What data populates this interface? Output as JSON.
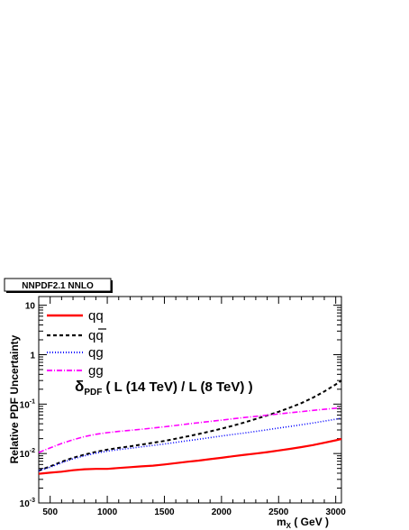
{
  "chart_data": {
    "type": "line",
    "title_box": "NNPDF2.1 NNLO",
    "xlabel_main": "m",
    "xlabel_sub": "X",
    "xlabel_unit": " ( GeV )",
    "ylabel": "Relative PDF Uncertainty",
    "xlim": [
      400,
      3050
    ],
    "ylim": [
      0.001,
      15
    ],
    "yscale": "log",
    "x_ticks": [
      500,
      1000,
      1500,
      2000,
      2500,
      3000
    ],
    "y_ticks": [
      {
        "value": 0.001,
        "base": "10",
        "exp": "-3"
      },
      {
        "value": 0.01,
        "base": "10",
        "exp": "-2"
      },
      {
        "value": 0.1,
        "base": "10",
        "exp": "-1"
      },
      {
        "value": 1,
        "base": "1",
        "exp": ""
      },
      {
        "value": 10,
        "base": "10",
        "exp": ""
      }
    ],
    "formula": {
      "delta": "δ",
      "sub": "PDF",
      "text": " ( L (14 TeV) / L (8 TeV) )"
    },
    "legend_position": "top-left",
    "x": [
      400,
      500,
      600,
      700,
      800,
      900,
      1000,
      1100,
      1200,
      1300,
      1400,
      1500,
      1600,
      1700,
      1800,
      1900,
      2000,
      2100,
      2200,
      2300,
      2400,
      2500,
      2600,
      2700,
      2800,
      2900,
      3000,
      3050
    ],
    "series": [
      {
        "name": "qq",
        "overline": false,
        "color": "#ff0000",
        "dash": "none",
        "width": 2.2,
        "values": [
          0.0039,
          0.0041,
          0.0043,
          0.0046,
          0.0048,
          0.0049,
          0.0049,
          0.0051,
          0.0053,
          0.0055,
          0.0057,
          0.006,
          0.0064,
          0.0068,
          0.0072,
          0.0077,
          0.0082,
          0.0088,
          0.0094,
          0.01,
          0.0107,
          0.0115,
          0.0124,
          0.0135,
          0.0148,
          0.0165,
          0.0185,
          0.0197
        ]
      },
      {
        "name": "qq",
        "overline": true,
        "color": "#000000",
        "dash": "4,3",
        "width": 2,
        "values": [
          0.0045,
          0.0055,
          0.0068,
          0.0082,
          0.0095,
          0.0108,
          0.012,
          0.013,
          0.014,
          0.0152,
          0.0165,
          0.018,
          0.02,
          0.0222,
          0.0248,
          0.028,
          0.0318,
          0.0365,
          0.0425,
          0.05,
          0.059,
          0.07,
          0.085,
          0.105,
          0.135,
          0.18,
          0.25,
          0.3
        ]
      },
      {
        "name": "qg",
        "overline": false,
        "color": "#0000ff",
        "dash": "1,2",
        "width": 1.6,
        "values": [
          0.0045,
          0.0053,
          0.0065,
          0.0078,
          0.009,
          0.0102,
          0.0112,
          0.012,
          0.0128,
          0.0137,
          0.0146,
          0.0156,
          0.0168,
          0.0181,
          0.0195,
          0.021,
          0.0226,
          0.0243,
          0.026,
          0.028,
          0.0302,
          0.0327,
          0.0354,
          0.0383,
          0.0415,
          0.0452,
          0.0495,
          0.052
        ]
      },
      {
        "name": "gg",
        "overline": false,
        "color": "#ff00ff",
        "dash": "6,2,1,2",
        "width": 1.6,
        "values": [
          0.0105,
          0.013,
          0.016,
          0.019,
          0.022,
          0.0245,
          0.0265,
          0.028,
          0.0295,
          0.031,
          0.0328,
          0.0348,
          0.037,
          0.0395,
          0.042,
          0.0447,
          0.0475,
          0.0505,
          0.0535,
          0.0565,
          0.0598,
          0.0632,
          0.0668,
          0.0705,
          0.0745,
          0.0785,
          0.0825,
          0.0845
        ]
      }
    ]
  }
}
